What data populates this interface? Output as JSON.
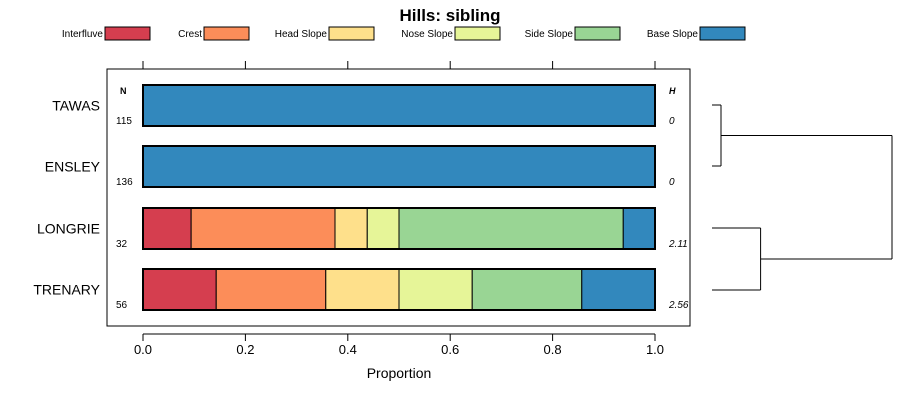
{
  "chart_data": {
    "type": "bar",
    "orientation": "horizontal",
    "stacked": true,
    "title": "Hills: sibling",
    "xlabel": "Proportion",
    "ylabel": "",
    "xlim": [
      0,
      1
    ],
    "xticks": [
      "0.0",
      "0.2",
      "0.4",
      "0.6",
      "0.8",
      "1.0"
    ],
    "xtick_values": [
      0,
      0.2,
      0.4,
      0.6,
      0.8,
      1.0
    ],
    "legend_position": "top",
    "column_headers": {
      "n": "N",
      "h": "H"
    },
    "categories": [
      "TAWAS",
      "ENSLEY",
      "LONGRIE",
      "TRENARY"
    ],
    "n_values": [
      "115",
      "136",
      "32",
      "56"
    ],
    "h_values": [
      "0",
      "0",
      "2.11",
      "2.56"
    ],
    "series": [
      {
        "name": "Interfluve",
        "color": "#D53E4F",
        "values": [
          0,
          0,
          0.094,
          0.143
        ]
      },
      {
        "name": "Crest",
        "color": "#FC8D59",
        "values": [
          0,
          0,
          0.281,
          0.214
        ]
      },
      {
        "name": "Head Slope",
        "color": "#FEE08B",
        "values": [
          0,
          0,
          0.063,
          0.143
        ]
      },
      {
        "name": "Nose Slope",
        "color": "#E6F598",
        "values": [
          0,
          0,
          0.062,
          0.143
        ]
      },
      {
        "name": "Side Slope",
        "color": "#99D594",
        "values": [
          0,
          0,
          0.438,
          0.214
        ]
      },
      {
        "name": "Base Slope",
        "color": "#3288BD",
        "values": [
          1.0,
          1.0,
          0.062,
          0.143
        ]
      }
    ],
    "dendrogram": {
      "clusters": [
        [
          "TAWAS",
          "ENSLEY"
        ],
        [
          "LONGRIE",
          "TRENARY"
        ]
      ],
      "merge_heights": [
        0.05,
        0.27,
        1.0
      ]
    }
  }
}
